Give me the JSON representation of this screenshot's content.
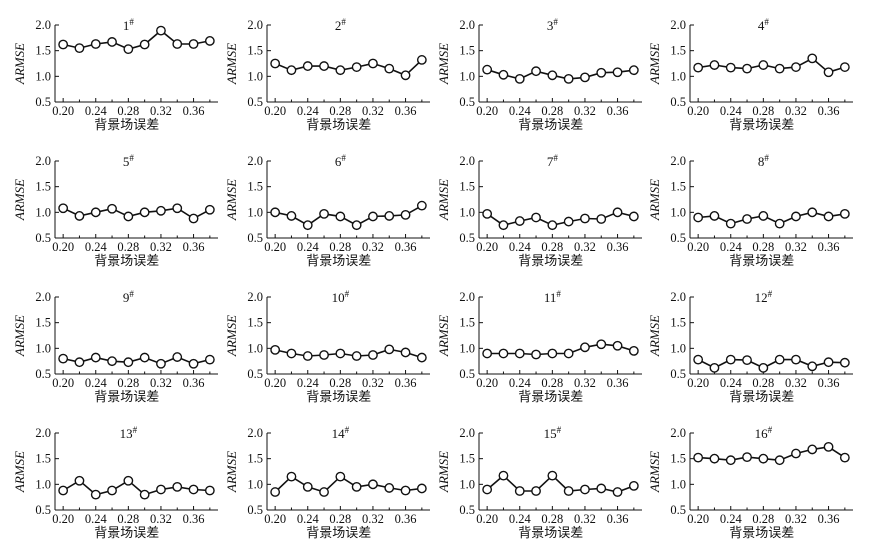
{
  "chart_data": [
    {
      "type": "line",
      "title": "1",
      "title_mark": "#",
      "xlabel": "背景场误差",
      "ylabel": "ARMSE",
      "x": [
        0.2,
        0.22,
        0.24,
        0.26,
        0.28,
        0.3,
        0.32,
        0.34,
        0.36,
        0.38
      ],
      "values": [
        1.62,
        1.55,
        1.63,
        1.67,
        1.53,
        1.62,
        1.89,
        1.63,
        1.63,
        1.69
      ],
      "xticks": [
        "0.20",
        "0.24",
        "0.28",
        "0.32",
        "0.36"
      ],
      "yticks": [
        "0.5",
        "1.0",
        "1.5",
        "2.0"
      ],
      "ylim": [
        0.5,
        2.0
      ],
      "xlim": [
        0.19,
        0.39
      ]
    },
    {
      "type": "line",
      "title": "2",
      "title_mark": "#",
      "xlabel": "背景场误差",
      "ylabel": "ARMSE",
      "x": [
        0.2,
        0.22,
        0.24,
        0.26,
        0.28,
        0.3,
        0.32,
        0.34,
        0.36,
        0.38
      ],
      "values": [
        1.25,
        1.12,
        1.2,
        1.2,
        1.12,
        1.18,
        1.25,
        1.15,
        1.02,
        1.32
      ],
      "xticks": [
        "0.20",
        "0.24",
        "0.28",
        "0.32",
        "0.36"
      ],
      "yticks": [
        "0.5",
        "1.0",
        "1.5",
        "2.0"
      ],
      "ylim": [
        0.5,
        2.0
      ],
      "xlim": [
        0.19,
        0.39
      ]
    },
    {
      "type": "line",
      "title": "3",
      "title_mark": "#",
      "xlabel": "背景场误差",
      "ylabel": "ARMSE",
      "x": [
        0.2,
        0.22,
        0.24,
        0.26,
        0.28,
        0.3,
        0.32,
        0.34,
        0.36,
        0.38
      ],
      "values": [
        1.13,
        1.03,
        0.95,
        1.1,
        1.02,
        0.95,
        0.98,
        1.07,
        1.08,
        1.12
      ],
      "xticks": [
        "0.20",
        "0.24",
        "0.28",
        "0.32",
        "0.36"
      ],
      "yticks": [
        "0.5",
        "1.0",
        "1.5",
        "2.0"
      ],
      "ylim": [
        0.5,
        2.0
      ],
      "xlim": [
        0.19,
        0.39
      ]
    },
    {
      "type": "line",
      "title": "4",
      "title_mark": "#",
      "xlabel": "背景场误差",
      "ylabel": "ARMSE",
      "x": [
        0.2,
        0.22,
        0.24,
        0.26,
        0.28,
        0.3,
        0.32,
        0.34,
        0.36,
        0.38
      ],
      "values": [
        1.17,
        1.22,
        1.17,
        1.15,
        1.22,
        1.15,
        1.18,
        1.35,
        1.08,
        1.18
      ],
      "xticks": [
        "0.20",
        "0.24",
        "0.28",
        "0.32",
        "0.36"
      ],
      "yticks": [
        "0.5",
        "1.0",
        "1.5",
        "2.0"
      ],
      "ylim": [
        0.5,
        2.0
      ],
      "xlim": [
        0.19,
        0.39
      ]
    },
    {
      "type": "line",
      "title": "5",
      "title_mark": "#",
      "xlabel": "背景场误差",
      "ylabel": "ARMSE",
      "x": [
        0.2,
        0.22,
        0.24,
        0.26,
        0.28,
        0.3,
        0.32,
        0.34,
        0.36,
        0.38
      ],
      "values": [
        1.08,
        0.93,
        1.0,
        1.07,
        0.92,
        1.0,
        1.03,
        1.08,
        0.88,
        1.05
      ],
      "xticks": [
        "0.20",
        "0.24",
        "0.28",
        "0.32",
        "0.36"
      ],
      "yticks": [
        "0.5",
        "1.0",
        "1.5",
        "2.0"
      ],
      "ylim": [
        0.5,
        2.0
      ],
      "xlim": [
        0.19,
        0.39
      ]
    },
    {
      "type": "line",
      "title": "6",
      "title_mark": "#",
      "xlabel": "背景场误差",
      "ylabel": "ARMSE",
      "x": [
        0.2,
        0.22,
        0.24,
        0.26,
        0.28,
        0.3,
        0.32,
        0.34,
        0.36,
        0.38
      ],
      "values": [
        1.0,
        0.93,
        0.75,
        0.97,
        0.92,
        0.75,
        0.92,
        0.93,
        0.95,
        1.13
      ],
      "xticks": [
        "0.20",
        "0.24",
        "0.28",
        "0.32",
        "0.36"
      ],
      "yticks": [
        "0.5",
        "1.0",
        "1.5",
        "2.0"
      ],
      "ylim": [
        0.5,
        2.0
      ],
      "xlim": [
        0.19,
        0.39
      ]
    },
    {
      "type": "line",
      "title": "7",
      "title_mark": "#",
      "xlabel": "背景场误差",
      "ylabel": "ARMSE",
      "x": [
        0.2,
        0.22,
        0.24,
        0.26,
        0.28,
        0.3,
        0.32,
        0.34,
        0.36,
        0.38
      ],
      "values": [
        0.97,
        0.75,
        0.83,
        0.9,
        0.75,
        0.82,
        0.88,
        0.87,
        1.0,
        0.92
      ],
      "xticks": [
        "0.20",
        "0.24",
        "0.28",
        "0.32",
        "0.36"
      ],
      "yticks": [
        "0.5",
        "1.0",
        "1.5",
        "2.0"
      ],
      "ylim": [
        0.5,
        2.0
      ],
      "xlim": [
        0.19,
        0.39
      ]
    },
    {
      "type": "line",
      "title": "8",
      "title_mark": "#",
      "xlabel": "背景场误差",
      "ylabel": "ARMSE",
      "x": [
        0.2,
        0.22,
        0.24,
        0.26,
        0.28,
        0.3,
        0.32,
        0.34,
        0.36,
        0.38
      ],
      "values": [
        0.9,
        0.93,
        0.78,
        0.87,
        0.93,
        0.78,
        0.92,
        1.0,
        0.92,
        0.97
      ],
      "xticks": [
        "0.20",
        "0.24",
        "0.28",
        "0.32",
        "0.36"
      ],
      "yticks": [
        "0.5",
        "1.0",
        "1.5",
        "2.0"
      ],
      "ylim": [
        0.5,
        2.0
      ],
      "xlim": [
        0.19,
        0.39
      ]
    },
    {
      "type": "line",
      "title": "9",
      "title_mark": "#",
      "xlabel": "背景场误差",
      "ylabel": "ARMSE",
      "x": [
        0.2,
        0.22,
        0.24,
        0.26,
        0.28,
        0.3,
        0.32,
        0.34,
        0.36,
        0.38
      ],
      "values": [
        0.8,
        0.73,
        0.82,
        0.75,
        0.73,
        0.82,
        0.7,
        0.83,
        0.7,
        0.78
      ],
      "xticks": [
        "0.20",
        "0.24",
        "0.28",
        "0.32",
        "0.36"
      ],
      "yticks": [
        "0.5",
        "1.0",
        "1.5",
        "2.0"
      ],
      "ylim": [
        0.5,
        2.0
      ],
      "xlim": [
        0.19,
        0.39
      ]
    },
    {
      "type": "line",
      "title": "10",
      "title_mark": "#",
      "xlabel": "背景场误差",
      "ylabel": "ARMSE",
      "x": [
        0.2,
        0.22,
        0.24,
        0.26,
        0.28,
        0.3,
        0.32,
        0.34,
        0.36,
        0.38
      ],
      "values": [
        0.97,
        0.9,
        0.85,
        0.87,
        0.9,
        0.85,
        0.87,
        0.98,
        0.92,
        0.82
      ],
      "xticks": [
        "0.20",
        "0.24",
        "0.28",
        "0.32",
        "0.36"
      ],
      "yticks": [
        "0.5",
        "1.0",
        "1.5",
        "2.0"
      ],
      "ylim": [
        0.5,
        2.0
      ],
      "xlim": [
        0.19,
        0.39
      ]
    },
    {
      "type": "line",
      "title": "11",
      "title_mark": "#",
      "xlabel": "背景场误差",
      "ylabel": "ARMSE",
      "x": [
        0.2,
        0.22,
        0.24,
        0.26,
        0.28,
        0.3,
        0.32,
        0.34,
        0.36,
        0.38
      ],
      "values": [
        0.9,
        0.9,
        0.9,
        0.88,
        0.9,
        0.9,
        1.02,
        1.08,
        1.05,
        0.95
      ],
      "xticks": [
        "0.20",
        "0.24",
        "0.28",
        "0.32",
        "0.36"
      ],
      "yticks": [
        "0.5",
        "1.0",
        "1.5",
        "2.0"
      ],
      "ylim": [
        0.5,
        2.0
      ],
      "xlim": [
        0.19,
        0.39
      ]
    },
    {
      "type": "line",
      "title": "12",
      "title_mark": "#",
      "xlabel": "背景场误差",
      "ylabel": "ARMSE",
      "x": [
        0.2,
        0.22,
        0.24,
        0.26,
        0.28,
        0.3,
        0.32,
        0.34,
        0.36,
        0.38
      ],
      "values": [
        0.78,
        0.62,
        0.78,
        0.77,
        0.62,
        0.78,
        0.78,
        0.65,
        0.73,
        0.72
      ],
      "xticks": [
        "0.20",
        "0.24",
        "0.28",
        "0.32",
        "0.36"
      ],
      "yticks": [
        "0.5",
        "1.0",
        "1.5",
        "2.0"
      ],
      "ylim": [
        0.5,
        2.0
      ],
      "xlim": [
        0.19,
        0.39
      ]
    },
    {
      "type": "line",
      "title": "13",
      "title_mark": "#",
      "xlabel": "背景场误差",
      "ylabel": "ARMSE",
      "x": [
        0.2,
        0.22,
        0.24,
        0.26,
        0.28,
        0.3,
        0.32,
        0.34,
        0.36,
        0.38
      ],
      "values": [
        0.88,
        1.07,
        0.8,
        0.88,
        1.07,
        0.8,
        0.9,
        0.95,
        0.9,
        0.88
      ],
      "xticks": [
        "0.20",
        "0.24",
        "0.28",
        "0.32",
        "0.36"
      ],
      "yticks": [
        "0.5",
        "1.0",
        "1.5",
        "2.0"
      ],
      "ylim": [
        0.5,
        2.0
      ],
      "xlim": [
        0.19,
        0.39
      ]
    },
    {
      "type": "line",
      "title": "14",
      "title_mark": "#",
      "xlabel": "背景场误差",
      "ylabel": "ARMSE",
      "x": [
        0.2,
        0.22,
        0.24,
        0.26,
        0.28,
        0.3,
        0.32,
        0.34,
        0.36,
        0.38
      ],
      "values": [
        0.85,
        1.15,
        0.95,
        0.85,
        1.15,
        0.95,
        1.0,
        0.93,
        0.88,
        0.92
      ],
      "xticks": [
        "0.20",
        "0.24",
        "0.28",
        "0.32",
        "0.36"
      ],
      "yticks": [
        "0.5",
        "1.0",
        "1.5",
        "2.0"
      ],
      "ylim": [
        0.5,
        2.0
      ],
      "xlim": [
        0.19,
        0.39
      ]
    },
    {
      "type": "line",
      "title": "15",
      "title_mark": "#",
      "xlabel": "背景场误差",
      "ylabel": "ARMSE",
      "x": [
        0.2,
        0.22,
        0.24,
        0.26,
        0.28,
        0.3,
        0.32,
        0.34,
        0.36,
        0.38
      ],
      "values": [
        0.9,
        1.17,
        0.87,
        0.87,
        1.17,
        0.87,
        0.9,
        0.92,
        0.85,
        0.97
      ],
      "xticks": [
        "0.20",
        "0.24",
        "0.28",
        "0.32",
        "0.36"
      ],
      "yticks": [
        "0.5",
        "1.0",
        "1.5",
        "2.0"
      ],
      "ylim": [
        0.5,
        2.0
      ],
      "xlim": [
        0.19,
        0.39
      ]
    },
    {
      "type": "line",
      "title": "16",
      "title_mark": "#",
      "xlabel": "背景场误差",
      "ylabel": "ARMSE",
      "x": [
        0.2,
        0.22,
        0.24,
        0.26,
        0.28,
        0.3,
        0.32,
        0.34,
        0.36,
        0.38
      ],
      "values": [
        1.52,
        1.5,
        1.47,
        1.53,
        1.5,
        1.47,
        1.6,
        1.68,
        1.73,
        1.52
      ],
      "xticks": [
        "0.20",
        "0.24",
        "0.28",
        "0.32",
        "0.36"
      ],
      "yticks": [
        "0.5",
        "1.0",
        "1.5",
        "2.0"
      ],
      "ylim": [
        0.5,
        2.0
      ],
      "xlim": [
        0.19,
        0.39
      ]
    }
  ]
}
